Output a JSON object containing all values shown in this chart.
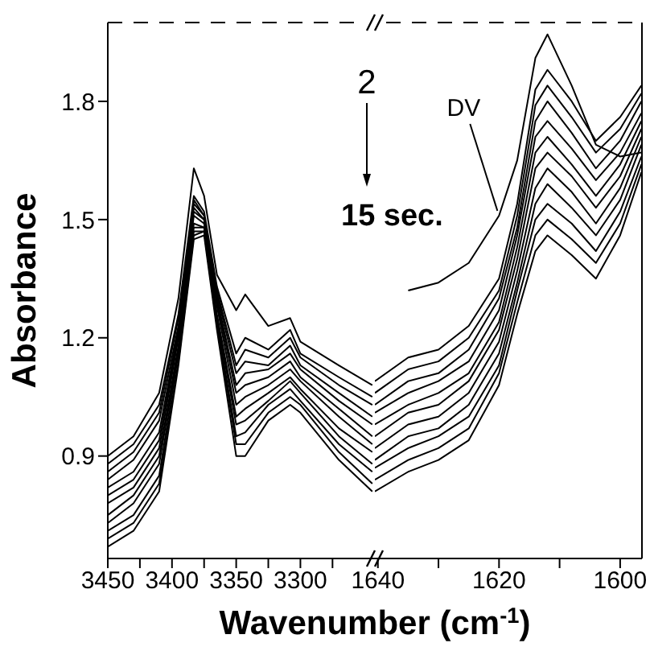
{
  "chart_data": [
    {
      "type": "line",
      "ylabel": "Absorbance",
      "xlabel": "Wavenumber (cm$^{-1}$)",
      "marker": "none",
      "tick_labels": "xy",
      "x": [
        3450,
        3430,
        3410,
        3395,
        3383,
        3375,
        3365,
        3350,
        3343,
        3325,
        3308,
        3300,
        3270,
        3244
      ],
      "xlim": [
        3450,
        3242
      ],
      "xticks": [
        3450,
        {
          "value": 3425,
          "label": null
        },
        3400,
        {
          "value": 3375,
          "label": null
        },
        3350,
        {
          "value": 3325,
          "label": null
        },
        3300,
        {
          "value": 3275,
          "label": null
        }
      ],
      "ylim": [
        0.64,
        2.0
      ],
      "yticks": [
        0.9,
        1.2,
        1.5,
        1.8
      ],
      "series": [
        {
          "color": "#000000",
          "values": [
            0.9,
            0.95,
            1.06,
            1.3,
            1.63,
            1.56,
            1.36,
            1.27,
            1.31,
            1.23,
            1.25,
            1.19,
            1.13,
            1.08
          ]
        },
        {
          "color": "#000000",
          "values": [
            0.88,
            0.93,
            1.03,
            1.26,
            1.56,
            1.52,
            1.33,
            1.16,
            1.2,
            1.17,
            1.22,
            1.16,
            1.1,
            1.05
          ]
        },
        {
          "color": "#000000",
          "values": [
            0.86,
            0.91,
            1.01,
            1.25,
            1.55,
            1.51,
            1.32,
            1.13,
            1.17,
            1.15,
            1.2,
            1.15,
            1.08,
            1.03
          ]
        },
        {
          "color": "#000000",
          "values": [
            0.84,
            0.89,
            0.99,
            1.23,
            1.54,
            1.51,
            1.31,
            1.11,
            1.14,
            1.13,
            1.18,
            1.13,
            1.06,
            1.0
          ]
        },
        {
          "color": "#000000",
          "values": [
            0.82,
            0.86,
            0.96,
            1.22,
            1.53,
            1.5,
            1.3,
            1.08,
            1.11,
            1.12,
            1.16,
            1.12,
            1.04,
            0.98
          ]
        },
        {
          "color": "#000000",
          "values": [
            0.8,
            0.84,
            0.94,
            1.21,
            1.52,
            1.5,
            1.29,
            1.06,
            1.08,
            1.1,
            1.14,
            1.1,
            1.02,
            0.95
          ]
        },
        {
          "color": "#000000",
          "values": [
            0.78,
            0.82,
            0.92,
            1.2,
            1.51,
            1.49,
            1.28,
            1.03,
            1.05,
            1.08,
            1.12,
            1.09,
            1.0,
            0.93
          ]
        },
        {
          "color": "#000000",
          "values": [
            0.75,
            0.8,
            0.9,
            1.18,
            1.49,
            1.48,
            1.26,
            1.0,
            1.02,
            1.06,
            1.1,
            1.07,
            0.97,
            0.91
          ]
        },
        {
          "color": "#000000",
          "values": [
            0.73,
            0.78,
            0.88,
            1.17,
            1.48,
            1.48,
            1.25,
            0.98,
            0.99,
            1.04,
            1.09,
            1.06,
            0.95,
            0.88
          ]
        },
        {
          "color": "#000000",
          "values": [
            0.71,
            0.75,
            0.85,
            1.16,
            1.47,
            1.47,
            1.24,
            0.95,
            0.96,
            1.03,
            1.07,
            1.04,
            0.93,
            0.86
          ]
        },
        {
          "color": "#000000",
          "values": [
            0.69,
            0.73,
            0.83,
            1.14,
            1.46,
            1.47,
            1.23,
            0.93,
            0.93,
            1.01,
            1.05,
            1.03,
            0.91,
            0.83
          ]
        },
        {
          "color": "#000000",
          "values": [
            0.67,
            0.71,
            0.81,
            1.13,
            1.45,
            1.46,
            1.22,
            0.9,
            0.9,
            0.99,
            1.03,
            1.01,
            0.89,
            0.81
          ]
        }
      ]
    },
    {
      "type": "line",
      "marker": "none",
      "tick_labels": "x",
      "annotations": [
        "2",
        "15 sec.",
        {
          "text": "DV",
          "x": 1620,
          "y": 1.51
        }
      ],
      "x": [
        1640.5,
        1635,
        1630,
        1625,
        1620,
        1617,
        1614,
        1612,
        1608,
        1604,
        1600,
        1596.5
      ],
      "xlim": [
        1640.5,
        1596.4
      ],
      "xticks": [
        1640,
        {
          "value": 1630,
          "label": null
        },
        1620,
        {
          "value": 1610,
          "label": null
        },
        1600
      ],
      "ylim": [
        0.64,
        2.0
      ],
      "series": [
        {
          "color": "#000000",
          "values": [
            null,
            1.32,
            1.34,
            1.39,
            1.51,
            1.65,
            1.91,
            1.97,
            1.84,
            1.69,
            1.66,
            1.67
          ]
        },
        {
          "color": "#000000",
          "values": [
            1.09,
            1.15,
            1.17,
            1.23,
            1.35,
            1.54,
            1.83,
            1.88,
            1.8,
            1.7,
            1.76,
            1.84
          ]
        },
        {
          "color": "#000000",
          "values": [
            1.06,
            1.12,
            1.14,
            1.2,
            1.32,
            1.51,
            1.79,
            1.84,
            1.76,
            1.67,
            1.73,
            1.82
          ]
        },
        {
          "color": "#000000",
          "values": [
            1.03,
            1.09,
            1.11,
            1.17,
            1.3,
            1.48,
            1.75,
            1.8,
            1.72,
            1.63,
            1.7,
            1.8
          ]
        },
        {
          "color": "#000000",
          "values": [
            1.01,
            1.06,
            1.09,
            1.14,
            1.27,
            1.46,
            1.71,
            1.75,
            1.68,
            1.6,
            1.67,
            1.77
          ]
        },
        {
          "color": "#000000",
          "values": [
            0.98,
            1.03,
            1.06,
            1.11,
            1.24,
            1.43,
            1.67,
            1.71,
            1.64,
            1.56,
            1.64,
            1.75
          ]
        },
        {
          "color": "#000000",
          "values": [
            0.95,
            1.01,
            1.03,
            1.09,
            1.22,
            1.4,
            1.63,
            1.67,
            1.61,
            1.53,
            1.61,
            1.73
          ]
        },
        {
          "color": "#000000",
          "values": [
            0.92,
            0.98,
            1.0,
            1.06,
            1.19,
            1.37,
            1.58,
            1.63,
            1.57,
            1.49,
            1.58,
            1.71
          ]
        },
        {
          "color": "#000000",
          "values": [
            0.89,
            0.95,
            0.97,
            1.03,
            1.16,
            1.34,
            1.54,
            1.59,
            1.53,
            1.46,
            1.55,
            1.69
          ]
        },
        {
          "color": "#000000",
          "values": [
            0.87,
            0.92,
            0.95,
            1.0,
            1.13,
            1.32,
            1.5,
            1.54,
            1.49,
            1.42,
            1.52,
            1.66
          ]
        },
        {
          "color": "#000000",
          "values": [
            0.84,
            0.89,
            0.92,
            0.97,
            1.11,
            1.29,
            1.46,
            1.5,
            1.45,
            1.39,
            1.49,
            1.64
          ]
        },
        {
          "color": "#000000",
          "values": [
            0.81,
            0.86,
            0.89,
            0.94,
            1.08,
            1.26,
            1.42,
            1.46,
            1.41,
            1.35,
            1.46,
            1.62
          ]
        }
      ]
    }
  ]
}
